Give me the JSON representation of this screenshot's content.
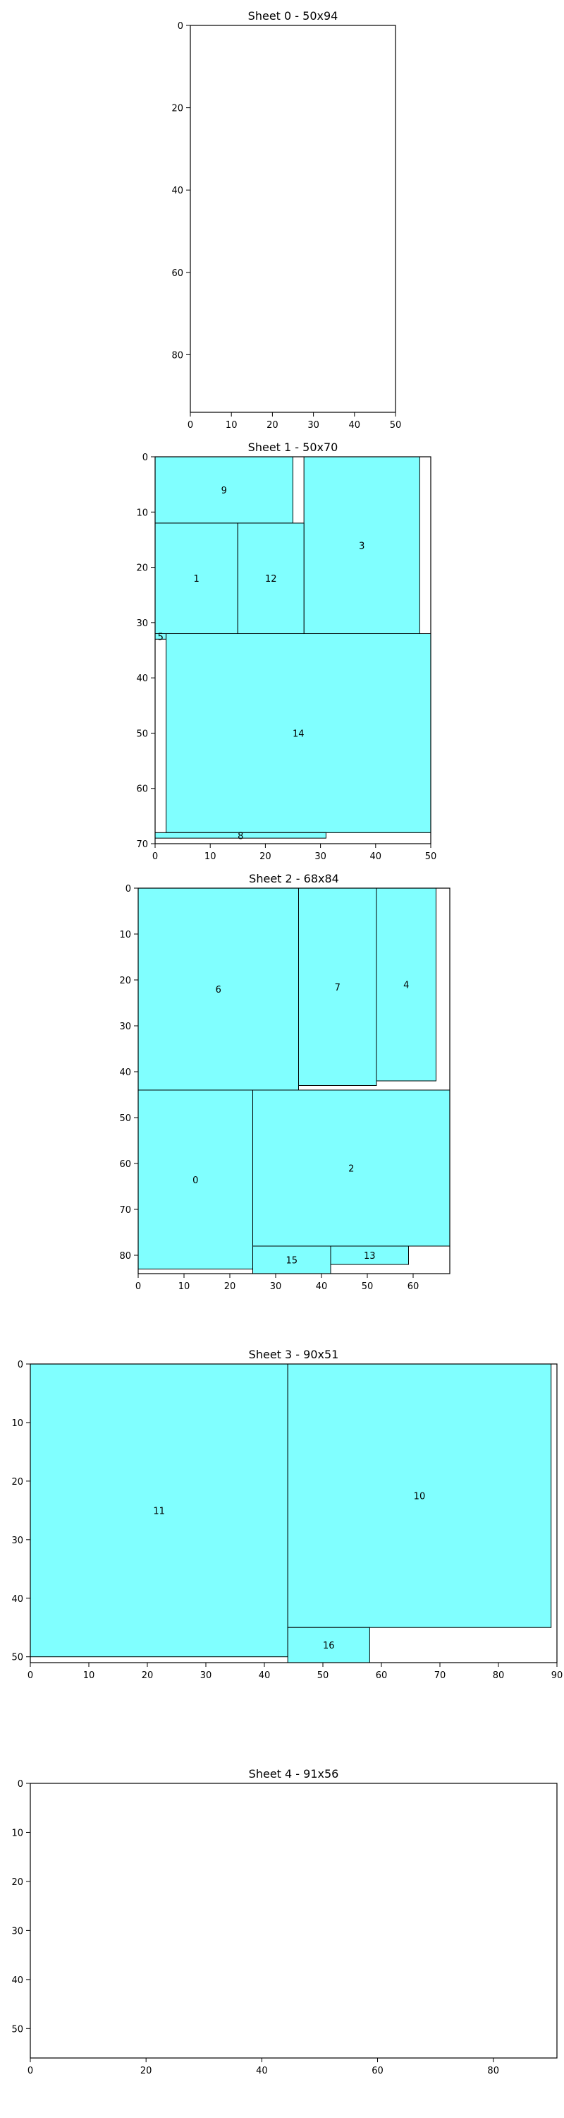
{
  "chart_data": [
    {
      "type": "rect-packing",
      "title": "Sheet 0 - 50x94",
      "xlim": [
        0,
        50
      ],
      "ylim": [
        94,
        0
      ],
      "xticks": [
        0,
        10,
        20,
        30,
        40,
        50
      ],
      "yticks": [
        0,
        20,
        40,
        60,
        80
      ],
      "colors": {
        "fill": "#80ffff",
        "edge": "#000000"
      },
      "rects": []
    },
    {
      "type": "rect-packing",
      "title": "Sheet 1 - 50x70",
      "xlim": [
        0,
        50
      ],
      "ylim": [
        70,
        0
      ],
      "xticks": [
        0,
        10,
        20,
        30,
        40,
        50
      ],
      "yticks": [
        0,
        10,
        20,
        30,
        40,
        50,
        60,
        70
      ],
      "colors": {
        "fill": "#80ffff",
        "edge": "#000000"
      },
      "rects": [
        {
          "label": "9",
          "x": 0,
          "y": 0,
          "w": 25,
          "h": 12
        },
        {
          "label": "3",
          "x": 27,
          "y": 0,
          "w": 21,
          "h": 32
        },
        {
          "label": "1",
          "x": 0,
          "y": 12,
          "w": 15,
          "h": 20
        },
        {
          "label": "12",
          "x": 15,
          "y": 12,
          "w": 12,
          "h": 20
        },
        {
          "label": "5",
          "x": 0,
          "y": 32,
          "w": 2,
          "h": 1
        },
        {
          "label": "14",
          "x": 2,
          "y": 32,
          "w": 48,
          "h": 36
        },
        {
          "label": "8",
          "x": 0,
          "y": 68,
          "w": 31,
          "h": 1
        }
      ]
    },
    {
      "type": "rect-packing",
      "title": "Sheet 2 - 68x84",
      "xlim": [
        0,
        68
      ],
      "ylim": [
        84,
        0
      ],
      "xticks": [
        0,
        10,
        20,
        30,
        40,
        50,
        60
      ],
      "yticks": [
        0,
        10,
        20,
        30,
        40,
        50,
        60,
        70,
        80
      ],
      "colors": {
        "fill": "#80ffff",
        "edge": "#000000"
      },
      "rects": [
        {
          "label": "6",
          "x": 0,
          "y": 0,
          "w": 35,
          "h": 44
        },
        {
          "label": "7",
          "x": 35,
          "y": 0,
          "w": 17,
          "h": 43
        },
        {
          "label": "4",
          "x": 52,
          "y": 0,
          "w": 13,
          "h": 42
        },
        {
          "label": "0",
          "x": 0,
          "y": 44,
          "w": 25,
          "h": 39
        },
        {
          "label": "2",
          "x": 25,
          "y": 44,
          "w": 43,
          "h": 34
        },
        {
          "label": "15",
          "x": 25,
          "y": 78,
          "w": 17,
          "h": 6
        },
        {
          "label": "13",
          "x": 42,
          "y": 78,
          "w": 17,
          "h": 4
        }
      ]
    },
    {
      "type": "rect-packing",
      "title": "Sheet 3 - 90x51",
      "xlim": [
        0,
        90
      ],
      "ylim": [
        51,
        0
      ],
      "xticks": [
        0,
        10,
        20,
        30,
        40,
        50,
        60,
        70,
        80,
        90
      ],
      "yticks": [
        0,
        10,
        20,
        30,
        40,
        50
      ],
      "colors": {
        "fill": "#80ffff",
        "edge": "#000000"
      },
      "rects": [
        {
          "label": "11",
          "x": 0,
          "y": 0,
          "w": 44,
          "h": 50
        },
        {
          "label": "10",
          "x": 44,
          "y": 0,
          "w": 45,
          "h": 45
        },
        {
          "label": "16",
          "x": 44,
          "y": 45,
          "w": 14,
          "h": 6
        }
      ]
    },
    {
      "type": "rect-packing",
      "title": "Sheet 4 - 91x56",
      "xlim": [
        0,
        91
      ],
      "ylim": [
        56,
        0
      ],
      "xticks": [
        0,
        20,
        40,
        60,
        80
      ],
      "yticks": [
        0,
        10,
        20,
        30,
        40,
        50
      ],
      "colors": {
        "fill": "#80ffff",
        "edge": "#000000"
      },
      "rects": []
    }
  ]
}
